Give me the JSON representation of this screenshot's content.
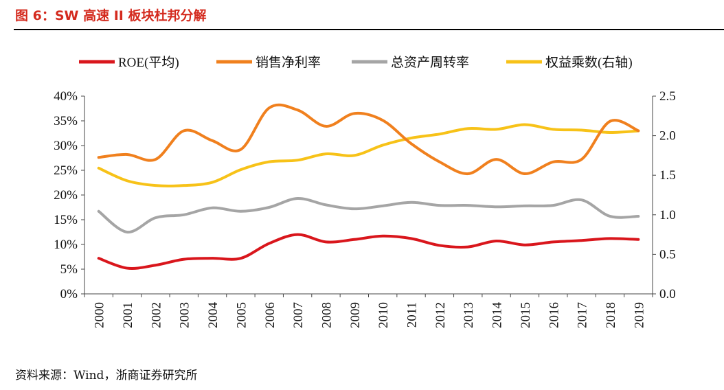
{
  "title": "图 6：SW 高速 II 板块杜邦分解",
  "source": "资料来源：Wind，浙商证券研究所",
  "chart_data": {
    "type": "line",
    "categories": [
      "2000",
      "2001",
      "2002",
      "2003",
      "2004",
      "2005",
      "2006",
      "2007",
      "2008",
      "2009",
      "2010",
      "2011",
      "2012",
      "2013",
      "2014",
      "2015",
      "2016",
      "2017",
      "2018",
      "2019"
    ],
    "y_left": {
      "range": [
        0,
        40
      ],
      "ticks": [
        "0%",
        "5%",
        "10%",
        "15%",
        "20%",
        "25%",
        "30%",
        "35%",
        "40%"
      ],
      "unit": "%"
    },
    "y_right": {
      "range": [
        0,
        2.5
      ],
      "ticks": [
        "0.0",
        "0.5",
        "1.0",
        "1.5",
        "2.0",
        "2.5"
      ]
    },
    "grid": false,
    "legend_position": "top",
    "series": [
      {
        "name": "ROE(平均)",
        "axis": "left",
        "color": "#d9161c",
        "values": [
          7.2,
          5.2,
          5.8,
          7.0,
          7.2,
          7.2,
          10.2,
          12.0,
          10.5,
          11.0,
          11.7,
          11.2,
          9.8,
          9.5,
          10.7,
          9.9,
          10.5,
          10.8,
          11.2,
          11.0
        ]
      },
      {
        "name": "销售净利率",
        "axis": "left",
        "color": "#f0801e",
        "values": [
          27.6,
          28.2,
          27.2,
          33.0,
          31.0,
          29.2,
          37.6,
          37.2,
          33.9,
          36.5,
          35.1,
          30.4,
          26.7,
          24.3,
          27.2,
          24.3,
          26.7,
          27.2,
          34.9,
          33.0
        ]
      },
      {
        "name": "总资产周转率",
        "axis": "left",
        "color": "#a5a5a5",
        "values": [
          16.7,
          12.5,
          15.4,
          16.0,
          17.4,
          16.7,
          17.5,
          19.3,
          18.0,
          17.2,
          17.8,
          18.5,
          17.9,
          17.9,
          17.6,
          17.8,
          17.9,
          19.0,
          15.7,
          15.7
        ]
      },
      {
        "name": "权益乘数(右轴)",
        "axis": "right",
        "color": "#f7c218",
        "values": [
          1.59,
          1.43,
          1.37,
          1.37,
          1.41,
          1.57,
          1.67,
          1.69,
          1.77,
          1.75,
          1.88,
          1.97,
          2.02,
          2.09,
          2.08,
          2.14,
          2.08,
          2.07,
          2.04,
          2.06
        ]
      }
    ]
  }
}
